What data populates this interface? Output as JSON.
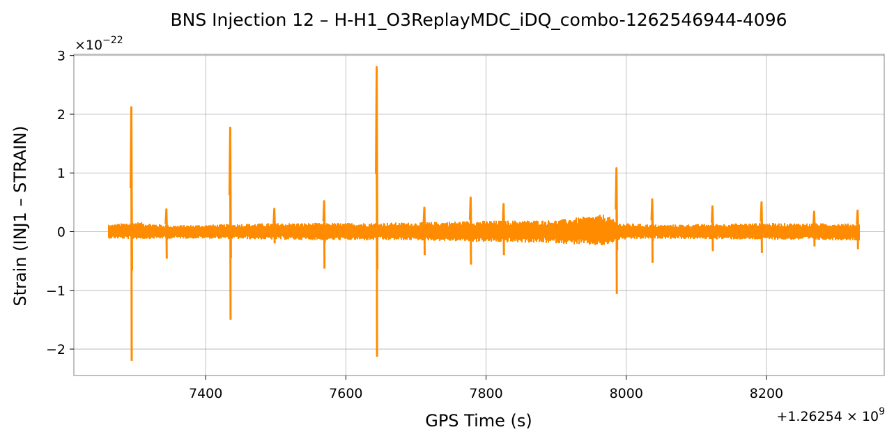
{
  "chart_data": {
    "type": "line",
    "title": "BNS Injection 12 – H-H1_O3ReplayMDC_iDQ_combo-1262546944-4096",
    "xlabel": "GPS Time (s)",
    "ylabel": "Strain (INJ1 – STRAIN)",
    "x_offset_label": "+1.26254 × 10^9",
    "y_multiplier_label": "×10^−22",
    "xlim": [
      7212,
      7368
    ],
    "ylim": [
      -2.45,
      3.02
    ],
    "x_ticks": [
      7400,
      7600,
      7800,
      8000,
      8200
    ],
    "x_tick_labels": [
      "7400",
      "7600",
      "7800",
      "8000",
      "8200"
    ],
    "y_ticks": [
      -2,
      -1,
      0,
      1,
      2,
      3
    ],
    "y_tick_labels": [
      "−2",
      "−1",
      "0",
      "1",
      "2",
      "3"
    ],
    "grid": true,
    "series": [
      {
        "color": "#ff8c00",
        "x_range": [
          7262,
          8332
        ],
        "baseline_envelope": [
          [
            7262,
            0.12,
            -0.12
          ],
          [
            7300,
            0.17,
            -0.13
          ],
          [
            7350,
            0.11,
            -0.12
          ],
          [
            7400,
            0.12,
            -0.12
          ],
          [
            7500,
            0.15,
            -0.14
          ],
          [
            7600,
            0.15,
            -0.15
          ],
          [
            7700,
            0.16,
            -0.15
          ],
          [
            7800,
            0.19,
            -0.18
          ],
          [
            7900,
            0.2,
            -0.2
          ],
          [
            7970,
            0.3,
            -0.25
          ],
          [
            7990,
            0.15,
            -0.14
          ],
          [
            8050,
            0.12,
            -0.12
          ],
          [
            8100,
            0.13,
            -0.13
          ],
          [
            8200,
            0.15,
            -0.14
          ],
          [
            8332,
            0.14,
            -0.15
          ]
        ],
        "peaks": [
          {
            "x": 7294,
            "max": 2.12,
            "min": -2.2
          },
          {
            "x": 7344,
            "max": 0.38,
            "min": -0.46
          },
          {
            "x": 7435,
            "max": 1.77,
            "min": -1.5
          },
          {
            "x": 7498,
            "max": 0.39,
            "min": -0.2
          },
          {
            "x": 7569,
            "max": 0.52,
            "min": -0.63
          },
          {
            "x": 7644,
            "max": 2.8,
            "min": -2.13
          },
          {
            "x": 7712,
            "max": 0.41,
            "min": -0.4
          },
          {
            "x": 7778,
            "max": 0.58,
            "min": -0.56
          },
          {
            "x": 7825,
            "max": 0.47,
            "min": -0.4
          },
          {
            "x": 7986,
            "max": 1.08,
            "min": -1.06
          },
          {
            "x": 8037,
            "max": 0.55,
            "min": -0.53
          },
          {
            "x": 8123,
            "max": 0.43,
            "min": -0.33
          },
          {
            "x": 8193,
            "max": 0.5,
            "min": -0.36
          },
          {
            "x": 8268,
            "max": 0.34,
            "min": -0.25
          },
          {
            "x": 8330,
            "max": 0.36,
            "min": -0.3
          }
        ]
      }
    ]
  }
}
